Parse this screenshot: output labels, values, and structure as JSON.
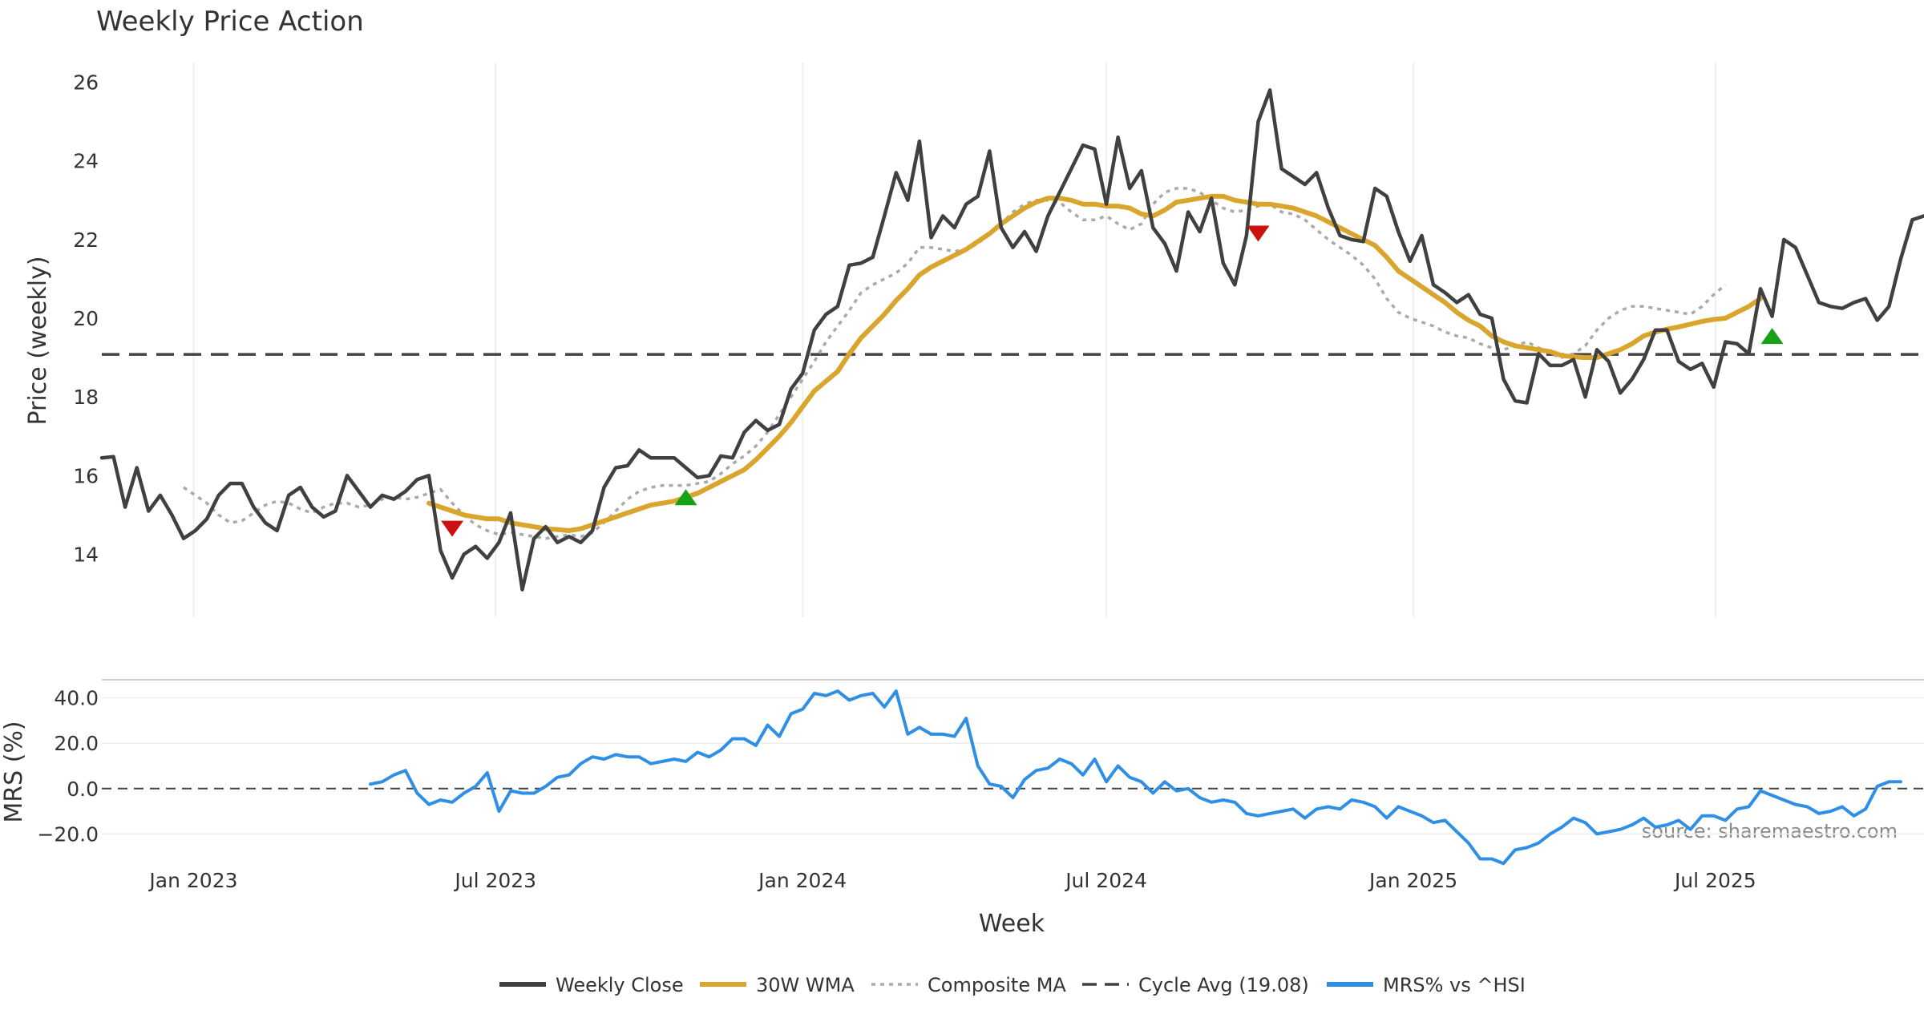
{
  "chart_data": {
    "type": "line",
    "title": "Weekly Price Action",
    "xlabel": "Week",
    "source": "source: sharemaestro.com",
    "x_ticks": [
      "Jan 2023",
      "Jul 2023",
      "Jan 2024",
      "Jul 2024",
      "Jan 2025",
      "Jul 2025"
    ],
    "x_range": [
      "2022-11-07",
      "2025-11-03"
    ],
    "legend_position": "bottom-center",
    "price_panel": {
      "ylabel": "Price (weekly)",
      "ylim": [
        12.4,
        26.5
      ],
      "yticks": [
        14,
        16,
        18,
        20,
        22,
        24,
        26
      ],
      "grid": "vertical",
      "cycle_avg": 19.08,
      "series": [
        {
          "name": "Weekly Close",
          "color": "#404040",
          "style": "solid",
          "start": "2022-11-07",
          "values": [
            16.45,
            16.48,
            15.2,
            16.2,
            15.1,
            15.5,
            15.0,
            14.4,
            14.6,
            14.9,
            15.5,
            15.8,
            15.8,
            15.2,
            14.8,
            14.6,
            15.5,
            15.7,
            15.2,
            14.95,
            15.1,
            16.0,
            15.6,
            15.2,
            15.5,
            15.4,
            15.6,
            15.9,
            16.0,
            14.1,
            13.4,
            14.0,
            14.2,
            13.9,
            14.3,
            15.05,
            13.1,
            14.4,
            14.7,
            14.3,
            14.45,
            14.3,
            14.6,
            15.7,
            16.2,
            16.25,
            16.65,
            16.45,
            16.45,
            16.45,
            16.2,
            15.95,
            16.0,
            16.5,
            16.45,
            17.1,
            17.4,
            17.15,
            17.3,
            18.2,
            18.6,
            19.7,
            20.1,
            20.3,
            21.35,
            21.4,
            21.55,
            22.6,
            23.7,
            23.0,
            24.5,
            22.05,
            22.6,
            22.3,
            22.9,
            23.1,
            24.25,
            22.3,
            21.8,
            22.2,
            21.7,
            22.6,
            23.2,
            23.8,
            24.4,
            24.3,
            22.9,
            24.6,
            23.3,
            23.75,
            22.3,
            21.9,
            21.2,
            22.7,
            22.2,
            23.05,
            21.4,
            20.85,
            22.1,
            25.0,
            25.8,
            23.8,
            23.6,
            23.4,
            23.7,
            22.8,
            22.1,
            22.0,
            21.95,
            23.3,
            23.1,
            22.2,
            21.45,
            22.1,
            20.85,
            20.65,
            20.4,
            20.6,
            20.1,
            20.0,
            18.45,
            17.9,
            17.85,
            19.1,
            18.8,
            18.8,
            18.95,
            18.0,
            19.2,
            18.9,
            18.1,
            18.45,
            18.95,
            19.7,
            19.7,
            18.9,
            18.7,
            18.85,
            18.25,
            19.4,
            19.35,
            19.1,
            20.75,
            20.05,
            22.0,
            21.8,
            21.1,
            20.4,
            20.3,
            20.25,
            20.4,
            20.5,
            19.95,
            20.3,
            21.5,
            22.5,
            22.6
          ]
        },
        {
          "name": "30W WMA",
          "color": "#DAA52C",
          "style": "solid",
          "start": "2023-05-22",
          "values": [
            15.3,
            15.2,
            15.1,
            15.0,
            14.95,
            14.9,
            14.9,
            14.8,
            14.75,
            14.7,
            14.65,
            14.63,
            14.6,
            14.65,
            14.75,
            14.85,
            14.95,
            15.05,
            15.15,
            15.25,
            15.3,
            15.35,
            15.45,
            15.55,
            15.7,
            15.85,
            16.0,
            16.15,
            16.4,
            16.7,
            17.0,
            17.35,
            17.75,
            18.15,
            18.4,
            18.65,
            19.1,
            19.5,
            19.8,
            20.1,
            20.45,
            20.75,
            21.1,
            21.3,
            21.45,
            21.6,
            21.75,
            21.95,
            22.15,
            22.4,
            22.6,
            22.8,
            22.95,
            23.05,
            23.05,
            23.0,
            22.9,
            22.9,
            22.85,
            22.85,
            22.8,
            22.65,
            22.6,
            22.75,
            22.95,
            23.0,
            23.05,
            23.1,
            23.1,
            23.0,
            22.95,
            22.9,
            22.9,
            22.85,
            22.8,
            22.7,
            22.6,
            22.45,
            22.3,
            22.15,
            22.0,
            21.85,
            21.55,
            21.2,
            21.0,
            20.8,
            20.6,
            20.4,
            20.15,
            19.95,
            19.8,
            19.55,
            19.4,
            19.3,
            19.25,
            19.2,
            19.15,
            19.05,
            19.02,
            19.0,
            19.0,
            19.1,
            19.2,
            19.35,
            19.55,
            19.65,
            19.72,
            19.78,
            19.85,
            19.92,
            19.97,
            20.0,
            20.15,
            20.3,
            20.5
          ]
        },
        {
          "name": "Composite MA",
          "color": "#AAAAAA",
          "style": "dotted",
          "start": "2022-12-26",
          "values": [
            15.7,
            15.5,
            15.3,
            15.0,
            14.8,
            14.85,
            15.05,
            15.25,
            15.35,
            15.3,
            15.15,
            15.05,
            15.2,
            15.3,
            15.3,
            15.2,
            15.25,
            15.4,
            15.45,
            15.4,
            15.45,
            15.55,
            15.65,
            15.3,
            15.0,
            14.75,
            14.6,
            14.5,
            14.55,
            14.5,
            14.45,
            14.4,
            14.45,
            14.5,
            14.45,
            14.55,
            14.8,
            15.1,
            15.4,
            15.6,
            15.7,
            15.75,
            15.75,
            15.75,
            15.8,
            15.85,
            16.05,
            16.3,
            16.5,
            16.75,
            17.1,
            17.55,
            18.0,
            18.45,
            18.9,
            19.4,
            19.8,
            20.2,
            20.65,
            20.85,
            21.0,
            21.15,
            21.4,
            21.8,
            21.8,
            21.75,
            21.7,
            21.75,
            21.9,
            22.15,
            22.4,
            22.7,
            22.9,
            23.0,
            23.0,
            22.95,
            22.7,
            22.5,
            22.5,
            22.6,
            22.4,
            22.25,
            22.4,
            22.9,
            23.2,
            23.3,
            23.3,
            23.2,
            23.0,
            22.8,
            22.7,
            22.75,
            22.85,
            22.9,
            22.7,
            22.65,
            22.5,
            22.25,
            22.0,
            21.8,
            21.6,
            21.35,
            21.0,
            20.5,
            20.15,
            20.0,
            19.9,
            19.8,
            19.65,
            19.55,
            19.5,
            19.35,
            19.25,
            19.2,
            19.3,
            19.4,
            19.25,
            19.1,
            19.0,
            19.1,
            19.3,
            19.7,
            20.0,
            20.2,
            20.3,
            20.3,
            20.25,
            20.2,
            20.15,
            20.1,
            20.3,
            20.6,
            20.85
          ]
        }
      ],
      "signals": [
        {
          "type": "sell",
          "date": "2023-06-05",
          "value": 14.65,
          "color": "#CC1111"
        },
        {
          "type": "buy",
          "date": "2023-10-23",
          "value": 15.45,
          "color": "#16A116"
        },
        {
          "type": "sell",
          "date": "2024-09-30",
          "value": 22.15,
          "color": "#CC1111"
        },
        {
          "type": "buy",
          "date": "2025-08-04",
          "value": 19.55,
          "color": "#16A116"
        }
      ]
    },
    "mrs_panel": {
      "ylabel": "MRS (%)",
      "ylim": [
        -34,
        48
      ],
      "yticks": [
        40.0,
        20.0,
        0.0,
        -20.0
      ],
      "ytick_labels": [
        "40.0",
        "20.0",
        "0.0",
        "−20.0"
      ],
      "zero_line": 0.0,
      "series": [
        {
          "name": "MRS% vs ^HSI",
          "color": "#2E8FE5",
          "style": "solid",
          "start": "2023-04-17",
          "values": [
            2,
            3,
            6,
            8,
            -2,
            -7,
            -5,
            -6,
            -2,
            1,
            7,
            -10,
            -1,
            -2,
            -2,
            1,
            5,
            6,
            11,
            14,
            13,
            15,
            14,
            14,
            11,
            12,
            13,
            12,
            16,
            14,
            17,
            22,
            22,
            19,
            28,
            23,
            33,
            35,
            42,
            41,
            43,
            39,
            41,
            42,
            36,
            43,
            24,
            27,
            24,
            24,
            23,
            31,
            10,
            2,
            1,
            -4,
            4,
            8,
            9,
            13,
            11,
            6,
            13,
            3,
            10,
            5,
            3,
            -2,
            3,
            -1,
            0,
            -4,
            -6,
            -5,
            -6,
            -11,
            -12,
            -11,
            -10,
            -9,
            -13,
            -9,
            -8,
            -9,
            -5,
            -6,
            -8,
            -13,
            -8,
            -10,
            -12,
            -15,
            -14,
            -19,
            -24,
            -31,
            -31,
            -33,
            -27,
            -26,
            -24,
            -20,
            -17,
            -13,
            -15,
            -20,
            -19,
            -18,
            -16,
            -13,
            -17,
            -16,
            -14,
            -18,
            -12,
            -12,
            -14,
            -9,
            -8,
            -1,
            -3,
            -5,
            -7,
            -8,
            -11,
            -10,
            -8,
            -12,
            -9,
            1,
            3,
            3
          ]
        }
      ]
    },
    "legend": [
      {
        "label": "Weekly Close",
        "color": "#404040",
        "style": "solid"
      },
      {
        "label": "30W WMA",
        "color": "#DAA52C",
        "style": "solid"
      },
      {
        "label": "Composite MA",
        "color": "#AAAAAA",
        "style": "dotted"
      },
      {
        "label": "Cycle Avg (19.08)",
        "color": "#404040",
        "style": "dashed"
      },
      {
        "label": "MRS% vs ^HSI",
        "color": "#2E8FE5",
        "style": "solid"
      }
    ]
  }
}
